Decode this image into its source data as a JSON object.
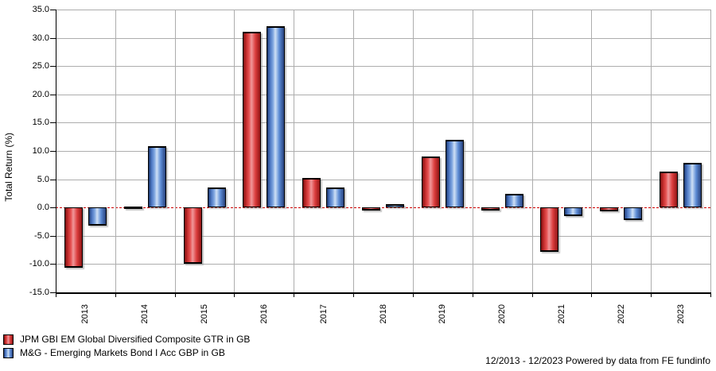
{
  "chart_data": {
    "type": "bar",
    "title": "",
    "ylabel": "Total Return (%)",
    "xlabel": "",
    "categories": [
      "2013",
      "2014",
      "2015",
      "2016",
      "2017",
      "2018",
      "2019",
      "2020",
      "2021",
      "2022",
      "2023"
    ],
    "series": [
      {
        "name": "JPM GBI EM Global Diversified Composite GTR in GB",
        "color": "#da3c3c",
        "values": [
          -10.7,
          0.2,
          -10.0,
          31.1,
          5.2,
          -0.5,
          9.0,
          -0.5,
          -7.9,
          -0.7,
          6.3
        ]
      },
      {
        "name": "M&G - Emerging Markets Bond I Acc GBP in GB",
        "color": "#5b8ad4",
        "values": [
          -3.2,
          10.8,
          3.6,
          32.1,
          3.5,
          0.6,
          12.0,
          2.4,
          -1.5,
          -2.2,
          7.9
        ]
      }
    ],
    "ylim": [
      -15,
      35
    ],
    "ytick_step": 5,
    "grid": true,
    "gridline_color": "#adadad",
    "zero_line_color": "#cc0000",
    "legend_position": "bottom-left"
  },
  "footer": {
    "text": "12/2013 - 12/2023 Powered by data from FE fundinfo"
  }
}
